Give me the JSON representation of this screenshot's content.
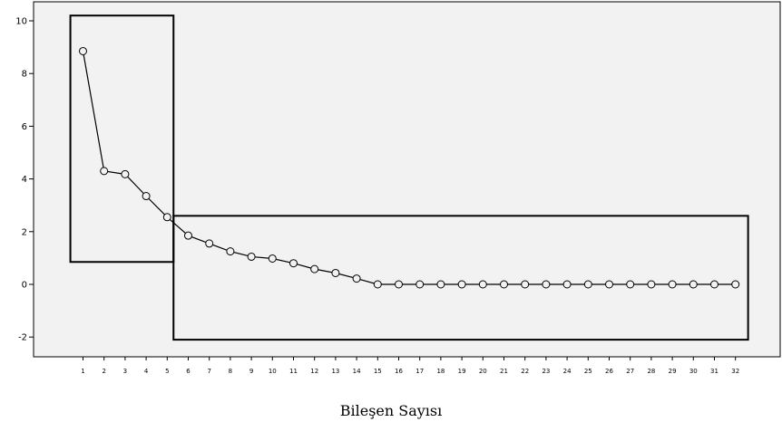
{
  "chart_data": {
    "type": "line",
    "title": "",
    "xlabel": "Bileşen Sayısı",
    "ylabel": "",
    "ylim": [
      -2.5,
      10.5
    ],
    "yticks": [
      -2,
      0,
      2,
      4,
      6,
      8,
      10
    ],
    "x": [
      1,
      2,
      3,
      4,
      5,
      6,
      7,
      8,
      9,
      10,
      11,
      12,
      13,
      14,
      15,
      16,
      17,
      18,
      19,
      20,
      21,
      22,
      23,
      24,
      25,
      26,
      27,
      28,
      29,
      30,
      31,
      32
    ],
    "series": [
      {
        "values": [
          8.85,
          4.3,
          4.18,
          3.35,
          2.55,
          1.85,
          1.55,
          1.25,
          1.05,
          0.98,
          0.8,
          0.58,
          0.43,
          0.22,
          0,
          0,
          0,
          0,
          0,
          0,
          0,
          0,
          0,
          0,
          0,
          0,
          0,
          0,
          0,
          0,
          0,
          0
        ]
      }
    ],
    "annotations": [
      {
        "type": "rectangle",
        "x_range": [
          0.4,
          5.3
        ],
        "y_range": [
          0.85,
          10.2
        ]
      },
      {
        "type": "rectangle",
        "x_range": [
          5.3,
          32.6
        ],
        "y_range": [
          -2.1,
          2.6
        ]
      }
    ],
    "grid": false,
    "background": "#f2f2f2",
    "line_color": "#000000",
    "marker": "open-circle"
  }
}
